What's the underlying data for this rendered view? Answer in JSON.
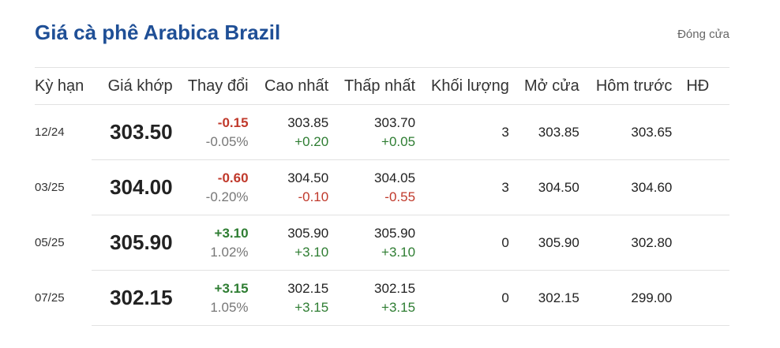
{
  "title": "Giá cà phê Arabica Brazil",
  "status": "Đóng cửa",
  "colors": {
    "title": "#1f4f96",
    "negative": "#c0392b",
    "positive": "#2e7d32"
  },
  "headers": [
    "Kỳ hạn",
    "Giá khớp",
    "Thay đổi",
    "Cao nhất",
    "Thấp nhất",
    "Khối lượng",
    "Mở cửa",
    "Hôm trước",
    "HĐ"
  ],
  "rows": [
    {
      "term": "12/24",
      "price": "303.50",
      "change": "-0.15",
      "change_pct": "-0.05%",
      "high": "303.85",
      "high_chg": "+0.20",
      "low": "303.70",
      "low_chg": "+0.05",
      "volume": "3",
      "open": "303.85",
      "prev": "303.65"
    },
    {
      "term": "03/25",
      "price": "304.00",
      "change": "-0.60",
      "change_pct": "-0.20%",
      "high": "304.50",
      "high_chg": "-0.10",
      "low": "304.05",
      "low_chg": "-0.55",
      "volume": "3",
      "open": "304.50",
      "prev": "304.60"
    },
    {
      "term": "05/25",
      "price": "305.90",
      "change": "+3.10",
      "change_pct": "1.02%",
      "high": "305.90",
      "high_chg": "+3.10",
      "low": "305.90",
      "low_chg": "+3.10",
      "volume": "0",
      "open": "305.90",
      "prev": "302.80"
    },
    {
      "term": "07/25",
      "price": "302.15",
      "change": "+3.15",
      "change_pct": "1.05%",
      "high": "302.15",
      "high_chg": "+3.15",
      "low": "302.15",
      "low_chg": "+3.15",
      "volume": "0",
      "open": "302.15",
      "prev": "299.00"
    }
  ]
}
